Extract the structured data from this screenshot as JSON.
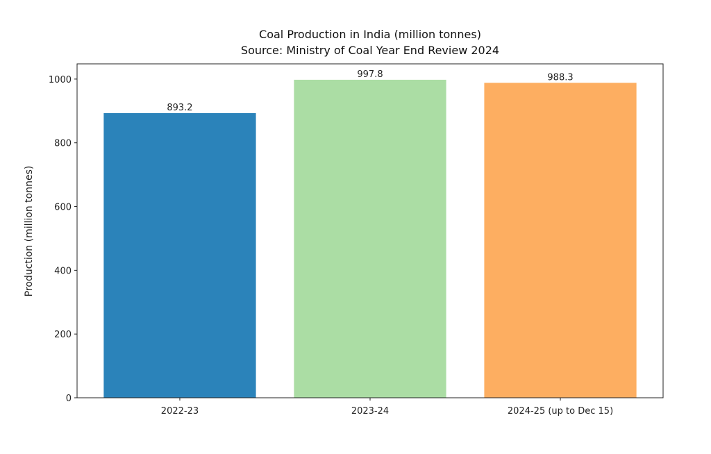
{
  "chart_data": {
    "type": "bar",
    "title": "Coal Production in India (million tonnes)",
    "subtitle": "Source: Ministry of Coal Year End Review 2024",
    "xlabel": "",
    "ylabel": "Production (million tonnes)",
    "categories": [
      "2022-23",
      "2023-24",
      "2024-25 (up to Dec 15)"
    ],
    "values": [
      893.2,
      997.8,
      988.3
    ],
    "data_labels": [
      "893.2",
      "997.8",
      "988.3"
    ],
    "colors": [
      "#2b83ba",
      "#abdda4",
      "#fdae61"
    ],
    "ylim": [
      0,
      1047.7
    ],
    "yticks": [
      0,
      200,
      400,
      600,
      800,
      1000
    ],
    "grid": false
  }
}
